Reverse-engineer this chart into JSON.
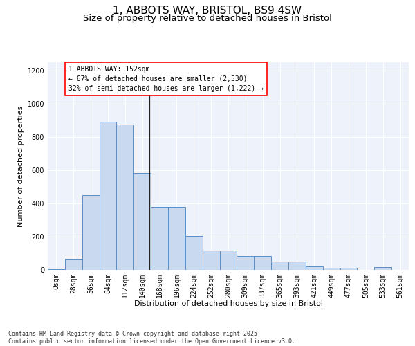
{
  "title_line1": "1, ABBOTS WAY, BRISTOL, BS9 4SW",
  "title_line2": "Size of property relative to detached houses in Bristol",
  "xlabel": "Distribution of detached houses by size in Bristol",
  "ylabel": "Number of detached properties",
  "bin_labels": [
    "0sqm",
    "28sqm",
    "56sqm",
    "84sqm",
    "112sqm",
    "140sqm",
    "168sqm",
    "196sqm",
    "224sqm",
    "252sqm",
    "280sqm",
    "309sqm",
    "337sqm",
    "365sqm",
    "393sqm",
    "421sqm",
    "449sqm",
    "477sqm",
    "505sqm",
    "533sqm",
    "561sqm"
  ],
  "bar_values": [
    5,
    65,
    450,
    890,
    875,
    585,
    380,
    380,
    205,
    115,
    115,
    85,
    85,
    50,
    50,
    20,
    13,
    13,
    0,
    15,
    0
  ],
  "bar_color": "#c9d9f0",
  "bar_edge_color": "#5b8ec4",
  "ylim": [
    0,
    1250
  ],
  "yticks": [
    0,
    200,
    400,
    600,
    800,
    1000,
    1200
  ],
  "property_line_x": 5.43,
  "annotation_box_text": "1 ABBOTS WAY: 152sqm\n← 67% of detached houses are smaller (2,530)\n32% of semi-detached houses are larger (1,222) →",
  "background_color": "#eef2fb",
  "footer_text": "Contains HM Land Registry data © Crown copyright and database right 2025.\nContains public sector information licensed under the Open Government Licence v3.0.",
  "grid_color": "#ffffff",
  "title_fontsize": 11,
  "subtitle_fontsize": 9.5,
  "axis_label_fontsize": 8,
  "tick_fontsize": 7,
  "annotation_fontsize": 7,
  "footer_fontsize": 6
}
